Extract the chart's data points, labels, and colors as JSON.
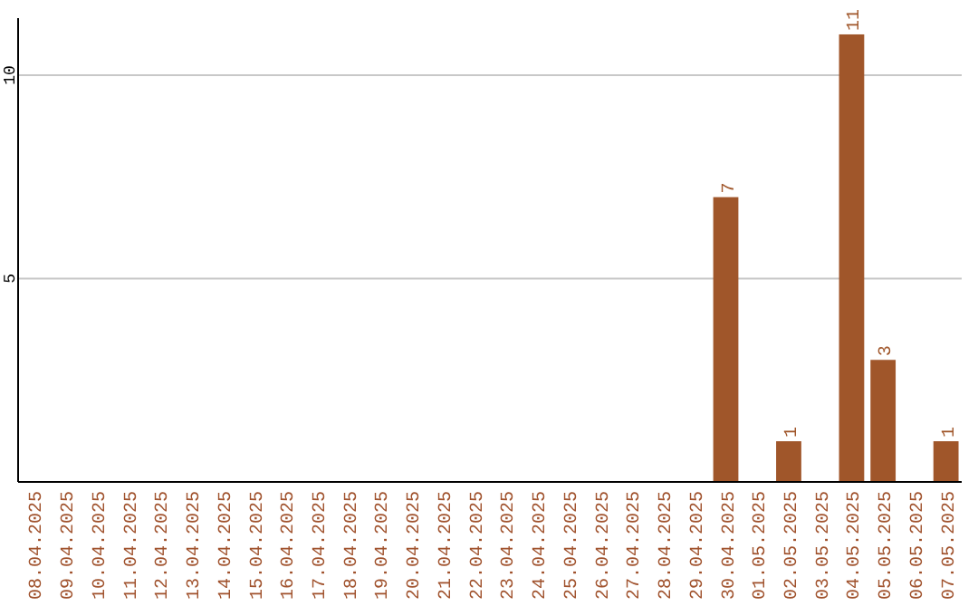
{
  "chart_data": {
    "type": "bar",
    "categories": [
      "08.04.2025",
      "09.04.2025",
      "10.04.2025",
      "11.04.2025",
      "12.04.2025",
      "13.04.2025",
      "14.04.2025",
      "15.04.2025",
      "16.04.2025",
      "17.04.2025",
      "18.04.2025",
      "19.04.2025",
      "20.04.2025",
      "21.04.2025",
      "22.04.2025",
      "23.04.2025",
      "24.04.2025",
      "25.04.2025",
      "26.04.2025",
      "27.04.2025",
      "28.04.2025",
      "29.04.2025",
      "30.04.2025",
      "01.05.2025",
      "02.05.2025",
      "03.05.2025",
      "04.05.2025",
      "05.05.2025",
      "06.05.2025",
      "07.05.2025"
    ],
    "values": [
      0,
      0,
      0,
      0,
      0,
      0,
      0,
      0,
      0,
      0,
      0,
      0,
      0,
      0,
      0,
      0,
      0,
      0,
      0,
      0,
      0,
      0,
      7,
      0,
      1,
      0,
      11,
      3,
      0,
      1
    ],
    "value_labels": [
      null,
      null,
      null,
      null,
      null,
      null,
      null,
      null,
      null,
      null,
      null,
      null,
      null,
      null,
      null,
      null,
      null,
      null,
      null,
      null,
      null,
      null,
      "7",
      null,
      "1",
      null,
      "11",
      "3",
      null,
      "1"
    ],
    "color": "#a0562a",
    "ylim": [
      0,
      11.4
    ],
    "yticks": [
      5,
      10
    ],
    "grid": "y"
  }
}
